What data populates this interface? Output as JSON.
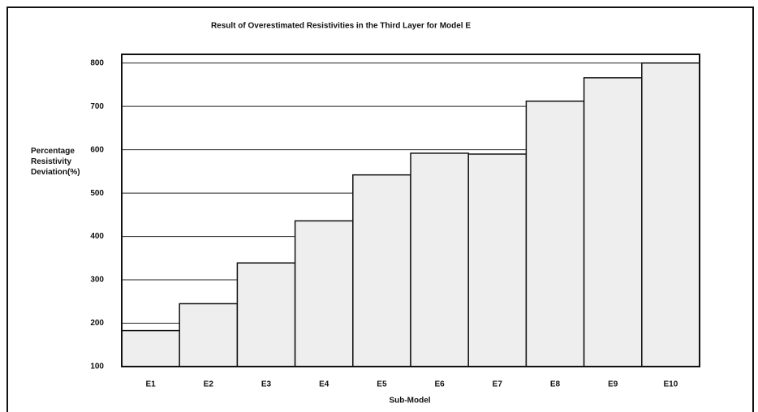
{
  "chart_data": {
    "type": "bar",
    "title": "Result of Overestimated Resistivities in the Third Layer for Model E",
    "xlabel": "Sub-Model",
    "ylabel": "Percentage Resistivity Deviation(%)",
    "categories": [
      "E1",
      "E2",
      "E3",
      "E4",
      "E5",
      "E6",
      "E7",
      "E8",
      "E9",
      "E10"
    ],
    "values": [
      183,
      245,
      339,
      436,
      542,
      592,
      590,
      712,
      766,
      800
    ],
    "color": "#eeeeee",
    "ylim": [
      100,
      820
    ],
    "yticks": [
      100,
      200,
      300,
      400,
      500,
      600,
      700,
      800
    ],
    "grid": true
  }
}
